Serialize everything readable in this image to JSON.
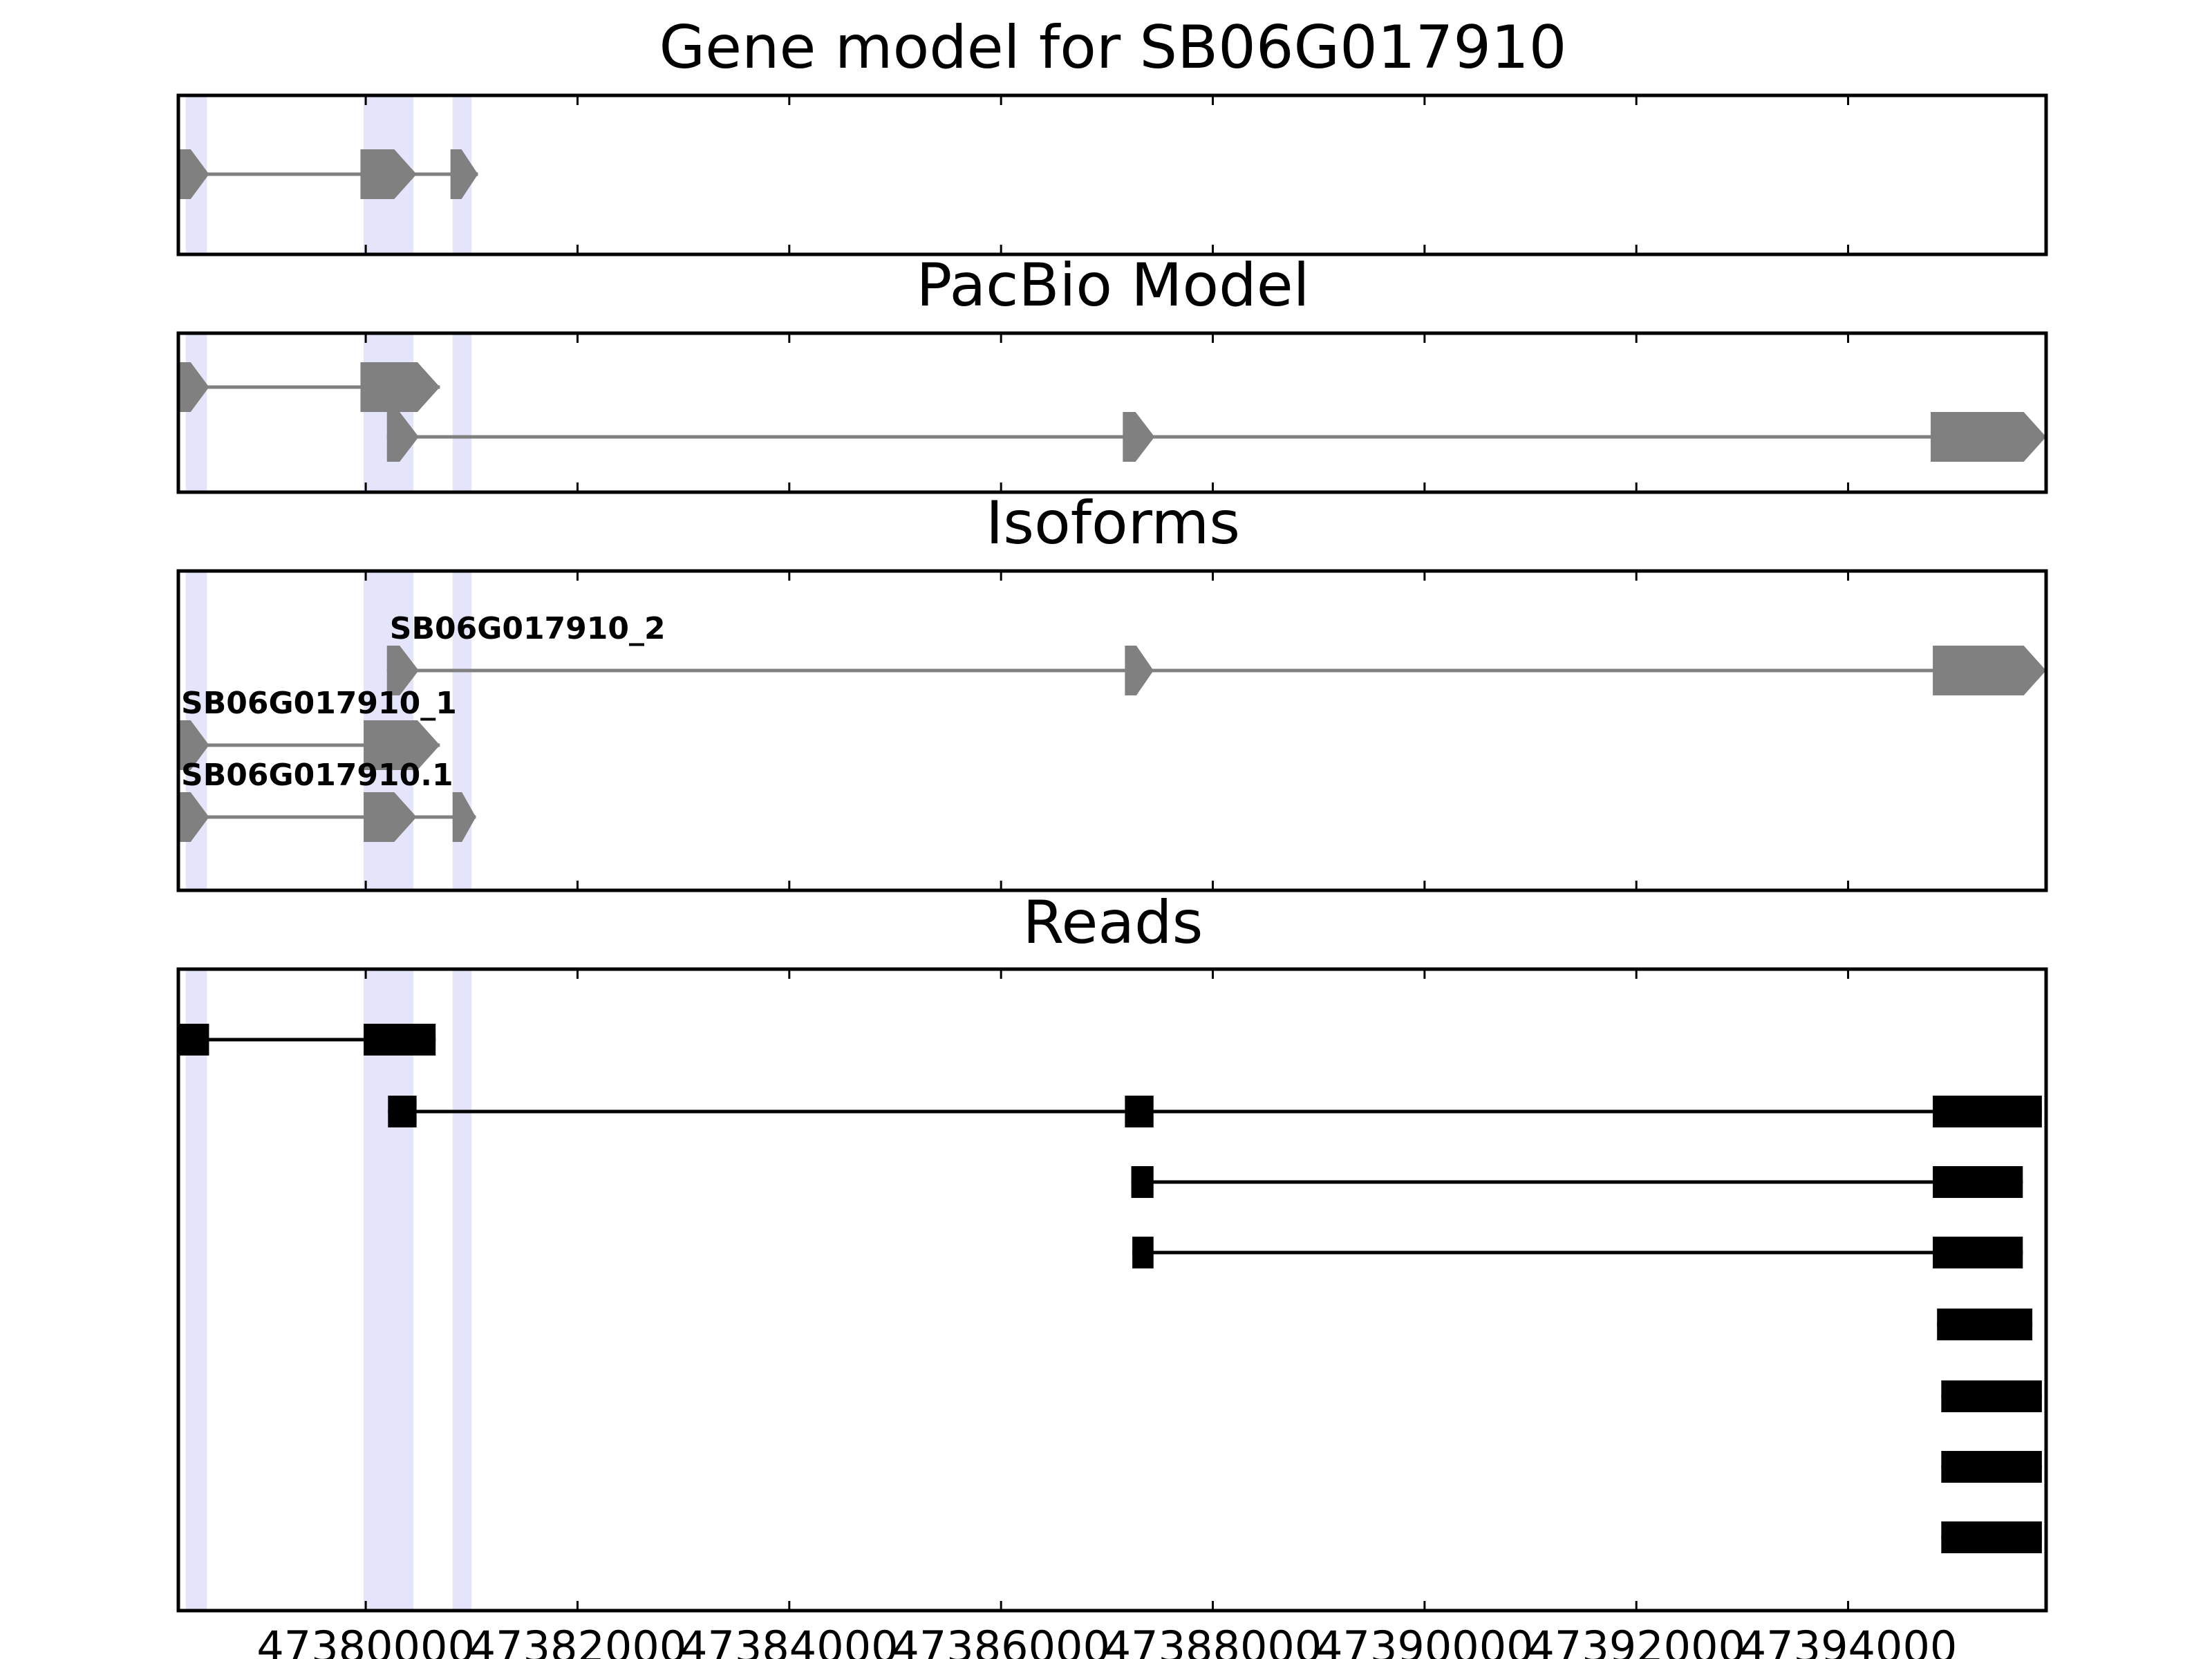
{
  "chart_data": {
    "type": "gene-model",
    "xlim": [
      47378230,
      47395870
    ],
    "xticks": [
      47380000,
      47382000,
      47384000,
      47386000,
      47388000,
      47390000,
      47392000,
      47394000
    ],
    "xtick_labels": [
      "47380000",
      "47382000",
      "47384000",
      "47386000",
      "47388000",
      "47390000",
      "47392000",
      "47394000"
    ],
    "highlight_color": "#e4e4fa",
    "feature_color": "#808080",
    "read_color": "#000000",
    "highlight_regions": [
      [
        47378300,
        47378500
      ],
      [
        47379980,
        47380450
      ],
      [
        47380820,
        47381000
      ]
    ],
    "panels": [
      {
        "title": "Gene model for SB06G017910",
        "tracks": [
          {
            "label": "",
            "exons": [
              [
                47378230,
                47378520
              ],
              [
                47379950,
                47380480
              ],
              [
                47380800,
                47381060
              ]
            ]
          }
        ]
      },
      {
        "title": "PacBio Model",
        "tracks": [
          {
            "label": "",
            "exons": [
              [
                47378230,
                47378520
              ],
              [
                47379950,
                47380700
              ]
            ]
          },
          {
            "label": "",
            "exons": [
              [
                47380200,
                47380500
              ],
              [
                47387150,
                47387450
              ],
              [
                47394780,
                47395870
              ]
            ]
          }
        ]
      },
      {
        "title": "Isoforms",
        "tracks": [
          {
            "label": "SB06G017910_2",
            "exons": [
              [
                47380200,
                47380500
              ],
              [
                47387170,
                47387440
              ],
              [
                47394800,
                47395870
              ]
            ]
          },
          {
            "label": "SB06G017910_1",
            "exons": [
              [
                47378230,
                47378520
              ],
              [
                47379980,
                47380700
              ]
            ]
          },
          {
            "label": "SB06G017910.1",
            "exons": [
              [
                47378230,
                47378520
              ],
              [
                47379980,
                47380480
              ],
              [
                47380820,
                47381040
              ]
            ]
          }
        ]
      },
      {
        "title": "Reads",
        "tracks": [
          {
            "label": "",
            "exons": [
              [
                47378230,
                47378520
              ],
              [
                47379980,
                47380660
              ]
            ]
          },
          {
            "label": "",
            "exons": [
              [
                47380210,
                47380480
              ],
              [
                47387170,
                47387440
              ],
              [
                47394800,
                47395830
              ]
            ]
          },
          {
            "label": "",
            "exons": [
              [
                47387230,
                47387440
              ],
              [
                47394800,
                47395650
              ]
            ]
          },
          {
            "label": "",
            "exons": [
              [
                47387240,
                47387440
              ],
              [
                47394800,
                47395650
              ]
            ]
          },
          {
            "label": "",
            "exons": [
              [
                47394840,
                47395740
              ]
            ]
          },
          {
            "label": "",
            "exons": [
              [
                47394880,
                47395830
              ]
            ]
          },
          {
            "label": "",
            "exons": [
              [
                47394880,
                47395830
              ]
            ]
          },
          {
            "label": "",
            "exons": [
              [
                47394880,
                47395830
              ]
            ]
          }
        ]
      }
    ]
  }
}
